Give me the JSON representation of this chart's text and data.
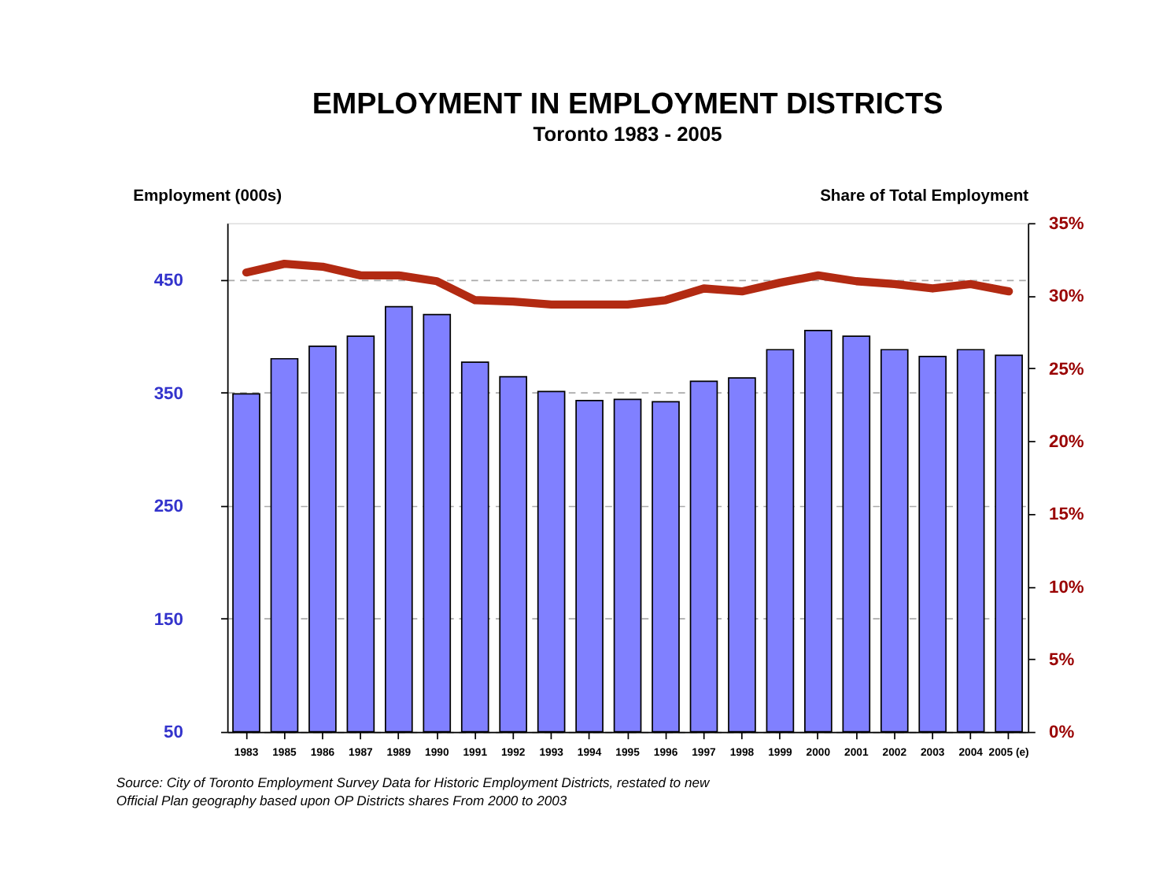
{
  "chart_data": {
    "type": "bar",
    "title": "EMPLOYMENT IN EMPLOYMENT DISTRICTS",
    "subtitle": "Toronto 1983 - 2005",
    "ylabel": "Employment (000s)",
    "y2label": "Share of Total Employment",
    "categories": [
      "1983",
      "1985",
      "1986",
      "1987",
      "1989",
      "1990",
      "1991",
      "1992",
      "1993",
      "1994",
      "1995",
      "1996",
      "1997",
      "1998",
      "1999",
      "2000",
      "2001",
      "2002",
      "2003",
      "2004",
      "2005 (e)"
    ],
    "series": [
      {
        "color": "#8080ff",
        "values": [
          349,
          380,
          391,
          400,
          426,
          419,
          377,
          364,
          351,
          343,
          344,
          342,
          360,
          363,
          388,
          405,
          400,
          388,
          382,
          388,
          383
        ]
      },
      {
        "type": "line",
        "axis": "y2",
        "color": "#b22a12",
        "values": [
          31.6,
          32.2,
          32.0,
          31.4,
          31.4,
          31.0,
          29.7,
          29.6,
          29.4,
          29.4,
          29.4,
          29.7,
          30.5,
          30.3,
          30.9,
          31.4,
          31.0,
          30.8,
          30.5,
          30.8,
          30.3
        ]
      }
    ],
    "ylim": [
      50,
      500
    ],
    "yticks": [
      50,
      150,
      250,
      350,
      450
    ],
    "y2lim": [
      0,
      35
    ],
    "y2ticks": [
      {
        "value": 0,
        "label": "0%"
      },
      {
        "value": 5,
        "label": "5%"
      },
      {
        "value": 10,
        "label": "10%"
      },
      {
        "value": 15,
        "label": "15%"
      },
      {
        "value": 20,
        "label": "20%"
      },
      {
        "value": 25,
        "label": "25%"
      },
      {
        "value": 30,
        "label": "30%"
      },
      {
        "value": 35,
        "label": "35%"
      }
    ],
    "grid": "y",
    "legend": false,
    "marker": "none",
    "line_style": "solid",
    "annotations": [
      "Source: City of Toronto Employment Survey Data for Historic Employment Districts, restated to new",
      "Official Plan geography based upon OP Districts shares From 2000 to 2003"
    ]
  }
}
